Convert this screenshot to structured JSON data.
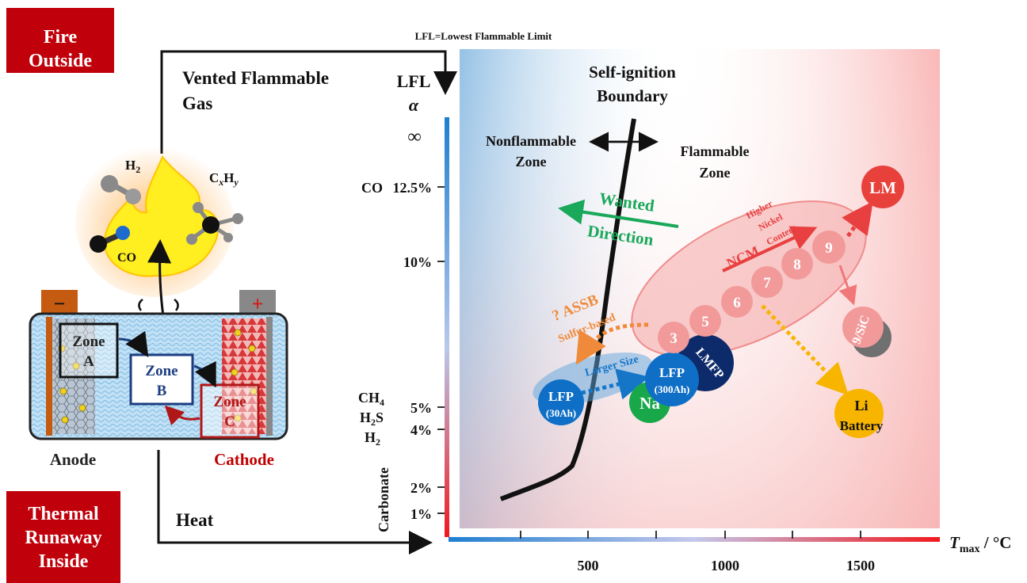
{
  "labels": {
    "fire_outside": [
      "Fire",
      "Outside"
    ],
    "thermal_runaway_inside": [
      "Thermal",
      "Runaway",
      "Inside"
    ],
    "lfl_note": "LFL=Lowest Flammable Limit",
    "vented_gas": [
      "Vented Flammable",
      "Gas"
    ],
    "heat": "Heat",
    "h2": "H",
    "h2_sub": "2",
    "cxhy": "C",
    "cxhy_sub1": "x",
    "cxhy_h": "H",
    "cxhy_sub2": "y",
    "co": "CO",
    "anode": "Anode",
    "cathode": "Cathode",
    "zone_a": [
      "Zone",
      "A"
    ],
    "zone_b": [
      "Zone",
      "B"
    ],
    "zone_c": [
      "Zone",
      "C"
    ],
    "minus": "−",
    "plus": "+"
  },
  "chart_data": {
    "type": "scatter",
    "title": "",
    "xlabel_main": "T",
    "xlabel_sub": "max",
    "xlabel_unit": " / °C",
    "x_ticks": [
      "500",
      "1000",
      "1500"
    ],
    "ylabel_top": [
      "LFL",
      "α"
    ],
    "y_ticks": [
      "∞",
      "12.5%",
      "10%",
      "5%",
      "4%",
      "2%",
      "1%"
    ],
    "y_gas_labels": {
      "co": "CO",
      "ch4": "CH",
      "ch4_sub": "4",
      "h2s_h": "H",
      "h2s_sub": "2",
      "h2s_s": "S",
      "h2": "H",
      "h2_sub": "2",
      "carbonate": "Carbonate"
    },
    "boundary_title": [
      "Self-ignition",
      "Boundary"
    ],
    "nonflammable": [
      "Nonflammable",
      "Zone"
    ],
    "flammable": [
      "Flammable",
      "Zone"
    ],
    "wanted": [
      "Wanted",
      "Direction"
    ],
    "assb": [
      "? ASSB",
      "Sulfur-based"
    ],
    "larger_size": "Larger Size",
    "ncm": "NCM",
    "higher_nickel": [
      "Higher",
      "Nickel",
      "Content"
    ],
    "points": [
      {
        "name": "LFP",
        "sub": "(30Ah)",
        "color": "#0f6fc6"
      },
      {
        "name": "Na",
        "sub": "",
        "color": "#18a84a"
      },
      {
        "name": "LFP",
        "sub": "(300Ah)",
        "color": "#0f6fc6"
      },
      {
        "name": "LMFP",
        "sub": "",
        "color": "#0d2a6b"
      },
      {
        "name": "3",
        "sub": "",
        "color": "#f29a9a"
      },
      {
        "name": "5",
        "sub": "",
        "color": "#f29a9a"
      },
      {
        "name": "6",
        "sub": "",
        "color": "#f29a9a"
      },
      {
        "name": "7",
        "sub": "",
        "color": "#f29a9a"
      },
      {
        "name": "8",
        "sub": "",
        "color": "#f29a9a"
      },
      {
        "name": "9",
        "sub": "",
        "color": "#f29a9a"
      },
      {
        "name": "9/SiC",
        "sub": "",
        "color": "#f29a9a"
      },
      {
        "name": "Li",
        "sub": "Battery",
        "color": "#f7b500"
      },
      {
        "name": "LM",
        "sub": "",
        "color": "#e8413c"
      }
    ]
  }
}
